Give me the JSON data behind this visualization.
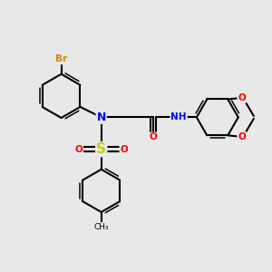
{
  "bg_color": "#e8e8e8",
  "bond_color": "#000000",
  "bond_lw": 1.5,
  "atom_colors": {
    "Br": "#cc8800",
    "N": "#0000ff",
    "S": "#cccc00",
    "O": "#ff0000",
    "H": "#4a7a8a",
    "C": "#000000"
  },
  "figsize": [
    3.0,
    3.0
  ],
  "dpi": 100
}
